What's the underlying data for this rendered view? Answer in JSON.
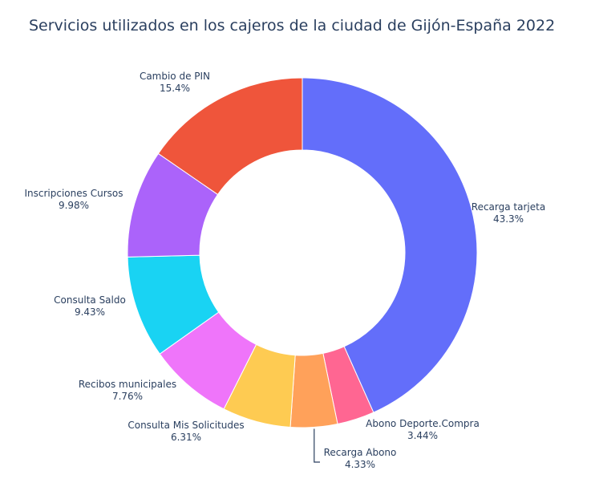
{
  "chart_data": {
    "type": "pie",
    "hole": true,
    "title": "Servicios utilizados en los cajeros de la ciudad de Gijón-España 2022",
    "slices": [
      {
        "label": "Recarga tarjeta",
        "percent_text": "43.3%",
        "value": 43.3,
        "color": "#636efa"
      },
      {
        "label": "Abono Deporte.Compra",
        "percent_text": "3.44%",
        "value": 3.44,
        "color": "#ff6692"
      },
      {
        "label": "Recarga Abono",
        "percent_text": "4.33%",
        "value": 4.33,
        "color": "#ffa15a"
      },
      {
        "label": "Consulta Mis Solicitudes",
        "percent_text": "6.31%",
        "value": 6.31,
        "color": "#fecb52"
      },
      {
        "label": "Recibos municipales",
        "percent_text": "7.76%",
        "value": 7.76,
        "color": "#ef75fa"
      },
      {
        "label": "Consulta Saldo",
        "percent_text": "9.43%",
        "value": 9.43,
        "color": "#19d3f3"
      },
      {
        "label": "Inscripciones Cursos",
        "percent_text": "9.98%",
        "value": 9.98,
        "color": "#ab63fa"
      },
      {
        "label": "Cambio de PIN",
        "percent_text": "15.4%",
        "value": 15.4,
        "color": "#ef553b"
      }
    ],
    "legend": "none"
  }
}
